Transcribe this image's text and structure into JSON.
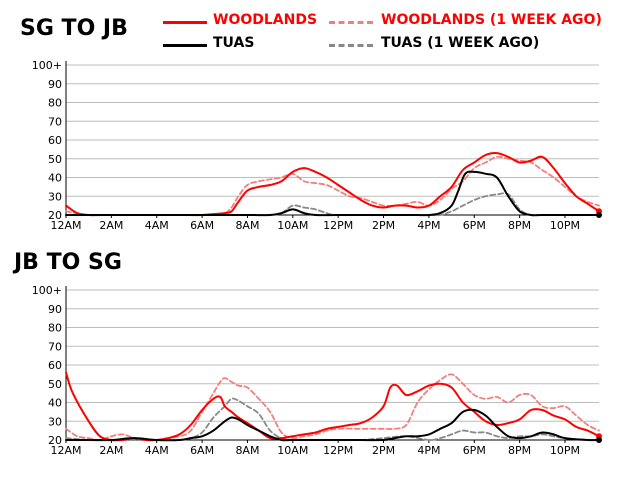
{
  "charts": [
    {
      "title": "SG TO JB",
      "chart_data": {
        "type": "line",
        "title": "SG TO JB",
        "xlabel": "",
        "ylabel": "",
        "x_ticks": [
          "12AM",
          "2AM",
          "4AM",
          "6AM",
          "8AM",
          "10AM",
          "12PM",
          "2PM",
          "4PM",
          "6PM",
          "8PM",
          "10PM"
        ],
        "y_ticks": [
          "20",
          "30",
          "40",
          "50",
          "60",
          "70",
          "80",
          "90",
          "100+"
        ],
        "ylim": [
          20,
          100
        ],
        "xlim_hours": [
          0,
          23.5
        ],
        "grid": true,
        "legend": "top",
        "series": [
          {
            "name": "WOODLANDS",
            "color": "#ff0000",
            "dashed": false,
            "width": 2,
            "x": [
              0,
              0.5,
              1,
              1.5,
              2,
              3,
              4,
              5,
              6,
              6.5,
              7,
              7.3,
              7.6,
              8,
              8.5,
              9,
              9.5,
              10,
              10.5,
              11,
              11.5,
              12,
              12.5,
              13,
              13.5,
              14,
              14.5,
              15,
              15.5,
              16,
              16.5,
              17,
              17.5,
              18,
              18.5,
              19,
              19.5,
              20,
              20.5,
              21,
              21.5,
              22,
              22.5,
              23,
              23.5
            ],
            "y": [
              25,
              21,
              20,
              20,
              20,
              20,
              20,
              20,
              20,
              20.5,
              21,
              22,
              27,
              33,
              35,
              36,
              38,
              43,
              45,
              43,
              40,
              36,
              32,
              28,
              25,
              24,
              25,
              25,
              24,
              25,
              30,
              35,
              44,
              48,
              52,
              53,
              51,
              48,
              49,
              51,
              45,
              37,
              30,
              26,
              22
            ]
          },
          {
            "name": "WOODLANDS (1 WEEK AGO)",
            "color": "#f08080",
            "dashed": true,
            "width": 1.8,
            "x": [
              0,
              1,
              2,
              3,
              4,
              5,
              6,
              6.5,
              7,
              7.3,
              7.6,
              8,
              8.5,
              9,
              9.5,
              10,
              10.5,
              11,
              11.5,
              12,
              12.5,
              13,
              13.5,
              14,
              14.5,
              15,
              15.5,
              16,
              16.5,
              17,
              17.5,
              18,
              18.5,
              19,
              19.5,
              20,
              20.5,
              21,
              21.5,
              22,
              22.5,
              23,
              23.5
            ],
            "y": [
              22,
              20,
              20,
              20,
              20,
              20,
              20,
              20.5,
              21,
              24,
              30,
              36,
              38,
              39,
              40,
              42,
              38,
              37,
              36,
              33,
              30,
              29,
              27,
              25,
              25,
              26,
              27,
              25,
              28,
              34,
              38,
              45,
              48,
              51,
              50,
              49,
              48,
              44,
              40,
              35,
              30,
              27,
              25
            ]
          },
          {
            "name": "TUAS",
            "color": "#000000",
            "dashed": false,
            "width": 2,
            "x": [
              0,
              2,
              4,
              6,
              8,
              9,
              9.5,
              10,
              10.5,
              11,
              12,
              14,
              15,
              15.5,
              16,
              16.5,
              17,
              17.3,
              17.6,
              18,
              18.5,
              19,
              19.5,
              20,
              20.5,
              21,
              22,
              23,
              23.5
            ],
            "y": [
              20,
              20,
              20,
              20,
              20,
              20,
              21,
              23,
              21,
              20,
              20,
              20,
              20,
              20,
              20,
              21,
              25,
              33,
              42,
              43,
              42,
              40,
              30,
              22,
              20,
              20,
              20,
              20,
              20
            ]
          },
          {
            "name": "TUAS (1 WEEK AGO)",
            "color": "#888888",
            "dashed": true,
            "width": 1.8,
            "x": [
              0,
              2,
              4,
              6,
              8,
              9,
              9.5,
              10,
              10.5,
              11,
              11.5,
              12,
              14,
              15,
              16,
              16.5,
              17,
              17.5,
              18,
              18.5,
              19,
              19.5,
              20,
              20.5,
              21,
              22,
              23,
              23.5
            ],
            "y": [
              20,
              20,
              20,
              20,
              20,
              20,
              21,
              25,
              24,
              23,
              21,
              20,
              20,
              20,
              20,
              20,
              22,
              25,
              28,
              30,
              31,
              31,
              23,
              20,
              20,
              20,
              20,
              20
            ]
          }
        ]
      }
    },
    {
      "title": "JB TO SG",
      "chart_data": {
        "type": "line",
        "title": "JB TO SG",
        "xlabel": "",
        "ylabel": "",
        "x_ticks": [
          "12AM",
          "2AM",
          "4AM",
          "6AM",
          "8AM",
          "10AM",
          "12PM",
          "2PM",
          "4PM",
          "6PM",
          "8PM",
          "10PM"
        ],
        "y_ticks": [
          "20",
          "30",
          "40",
          "50",
          "60",
          "70",
          "80",
          "90",
          "100+"
        ],
        "ylim": [
          20,
          100
        ],
        "xlim_hours": [
          0,
          23.5
        ],
        "grid": true,
        "legend": "top",
        "series": [
          {
            "name": "WOODLANDS",
            "color": "#ff0000",
            "dashed": false,
            "width": 2,
            "x": [
              0,
              0.3,
              1,
              1.5,
              2,
              2.5,
              3,
              3.5,
              4,
              4.5,
              5,
              5.5,
              6,
              6.5,
              6.8,
              7,
              7.3,
              7.6,
              8,
              8.5,
              9,
              9.5,
              10,
              10.5,
              11,
              11.5,
              12,
              12.5,
              13,
              13.5,
              14,
              14.3,
              14.6,
              15,
              15.5,
              16,
              16.5,
              17,
              17.5,
              18,
              18.5,
              19,
              19.5,
              20,
              20.5,
              21,
              21.5,
              22,
              22.5,
              23,
              23.5
            ],
            "y": [
              56,
              45,
              30,
              22,
              20,
              20,
              21,
              20,
              20,
              21,
              23,
              28,
              36,
              42,
              43,
              38,
              35,
              32,
              29,
              25,
              21,
              21,
              22,
              23,
              24,
              26,
              27,
              28,
              29,
              32,
              38,
              48,
              49,
              44,
              46,
              49,
              50,
              48,
              40,
              35,
              30,
              28,
              29,
              31,
              36,
              36,
              33,
              31,
              27,
              25,
              22
            ]
          },
          {
            "name": "WOODLANDS (1 WEEK AGO)",
            "color": "#f08080",
            "dashed": true,
            "width": 1.8,
            "x": [
              0,
              0.5,
              1,
              1.5,
              2,
              2.5,
              3,
              3.5,
              4,
              5,
              5.5,
              6,
              6.5,
              6.8,
              7,
              7.3,
              7.6,
              8,
              8.5,
              9,
              9.5,
              10,
              10.5,
              11,
              11.5,
              12,
              13,
              13.5,
              14,
              14.5,
              15,
              15.5,
              16,
              16.5,
              17,
              17.5,
              18,
              18.5,
              19,
              19.5,
              20,
              20.5,
              21,
              21.5,
              22,
              22.5,
              23,
              23.5
            ],
            "y": [
              26,
              22,
              21,
              20,
              22,
              23,
              21,
              20,
              20,
              22,
              25,
              35,
              45,
              51,
              53,
              51,
              49,
              48,
              42,
              35,
              24,
              21,
              22,
              23,
              25,
              26,
              26,
              26,
              26,
              26,
              28,
              40,
              47,
              52,
              55,
              50,
              44,
              42,
              43,
              40,
              44,
              44,
              38,
              37,
              38,
              33,
              28,
              25
            ]
          },
          {
            "name": "TUAS",
            "color": "#000000",
            "dashed": false,
            "width": 2,
            "x": [
              0,
              1,
              2,
              3,
              4,
              5,
              5.5,
              6,
              6.5,
              7,
              7.3,
              7.6,
              8,
              8.5,
              9,
              9.5,
              10,
              11,
              12,
              13,
              14,
              14.5,
              15,
              15.5,
              16,
              16.5,
              17,
              17.5,
              18,
              18.5,
              19,
              19.5,
              20,
              20.5,
              21,
              21.5,
              22,
              23,
              23.5
            ],
            "y": [
              20,
              20,
              20,
              21,
              20,
              20,
              21,
              22,
              25,
              30,
              32,
              31,
              28,
              25,
              22,
              20,
              20,
              20,
              20,
              20,
              20,
              21,
              22,
              22,
              23,
              26,
              29,
              35,
              36,
              33,
              27,
              22,
              21,
              22,
              24,
              23,
              21,
              20,
              20
            ]
          },
          {
            "name": "TUAS (1 WEEK AGO)",
            "color": "#888888",
            "dashed": true,
            "width": 1.8,
            "x": [
              0,
              1,
              2,
              3,
              4,
              5,
              5.5,
              6,
              6.5,
              7,
              7.3,
              7.6,
              8,
              8.5,
              9,
              9.5,
              10,
              11,
              12,
              13,
              14,
              15,
              16,
              16.5,
              17,
              17.5,
              18,
              18.5,
              19,
              19.5,
              20,
              20.5,
              21,
              21.5,
              22,
              23,
              23.5
            ],
            "y": [
              21,
              20,
              20,
              20,
              20,
              20,
              21,
              24,
              32,
              38,
              42,
              41,
              38,
              34,
              25,
              21,
              20,
              20,
              20,
              20,
              21,
              22,
              20,
              21,
              23,
              25,
              24,
              24,
              22,
              21,
              22,
              22,
              23,
              22,
              21,
              20,
              20
            ]
          }
        ]
      }
    }
  ]
}
